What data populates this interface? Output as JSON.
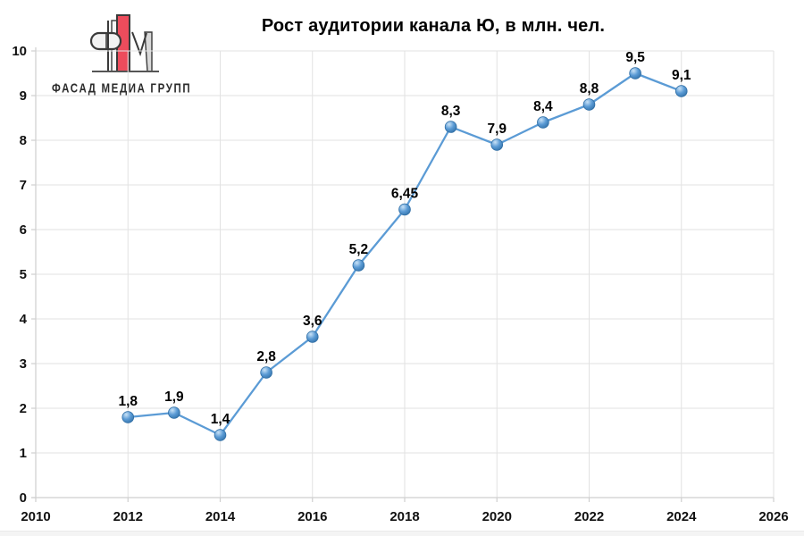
{
  "logo": {
    "text": "ФАСАД МЕДИА ГРУПП",
    "icon": "fasad-media-grupp-monogram",
    "red": "#ED4C5C",
    "grey": "#D9D9D9",
    "outline": "#3a3a3a"
  },
  "chart_data": {
    "type": "line",
    "title": "Рост аудитории канала Ю, в млн. чел.",
    "x": [
      2012,
      2013,
      2014,
      2015,
      2016,
      2017,
      2018,
      2019,
      2020,
      2021,
      2022,
      2023,
      2024
    ],
    "values": [
      1.8,
      1.9,
      1.4,
      2.8,
      3.6,
      5.2,
      6.45,
      8.3,
      7.9,
      8.4,
      8.8,
      9.5,
      9.1
    ],
    "point_labels": [
      "1,8",
      "1,9",
      "1,4",
      "2,8",
      "3,6",
      "5,2",
      "6,45",
      "8,3",
      "7,9",
      "8,4",
      "8,8",
      "9,5",
      "9,1"
    ],
    "xlim": [
      2010,
      2026
    ],
    "ylim": [
      0,
      10
    ],
    "x_ticks": [
      2010,
      2012,
      2014,
      2016,
      2018,
      2020,
      2022,
      2024,
      2026
    ],
    "y_ticks": [
      0,
      1,
      2,
      3,
      4,
      5,
      6,
      7,
      8,
      9,
      10
    ],
    "grid": "on",
    "legend": "none",
    "colors": {
      "line": "#5B9BD5",
      "marker_light": "#C9E2F6",
      "marker_mid": "#5B9BD5",
      "marker_deep": "#2E6DA4",
      "grid": "#E2E2E2",
      "axis": "#CFCFCF",
      "tick_text": "#111111",
      "data_label": "#000000"
    }
  }
}
